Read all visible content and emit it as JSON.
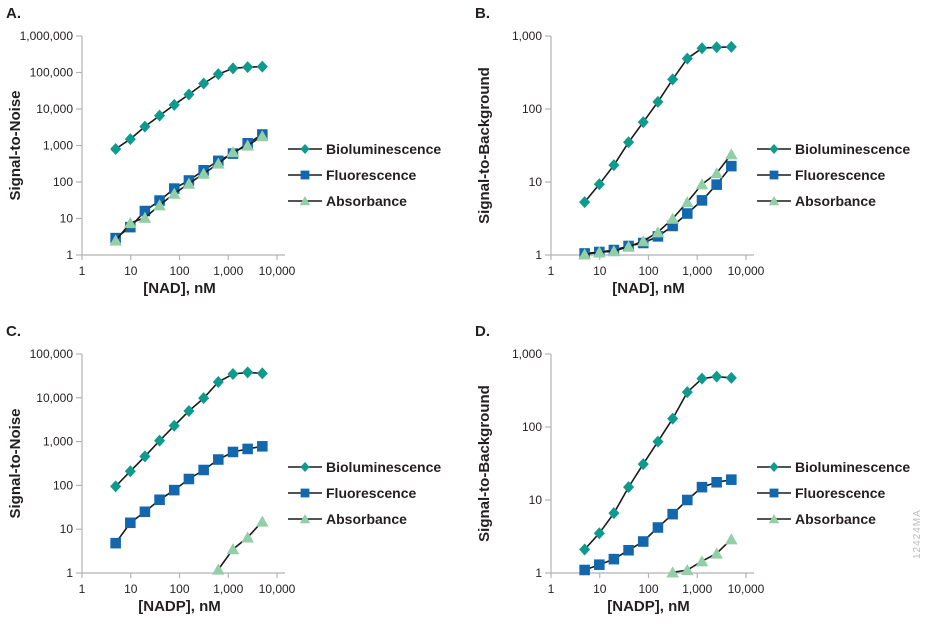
{
  "watermark": "12424MA",
  "colors": {
    "bioluminescence": "#0F9A8E",
    "fluorescence": "#1267AD",
    "absorbance": "#93CFA6",
    "line": "#1a1a1a",
    "axis": "#b1b3b5",
    "text": "#231f20",
    "watermark": "#b9bdbf"
  },
  "chart_data": [
    {
      "panel": "A.",
      "type": "line",
      "xlabel": "[NAD], nM",
      "ylabel": "Signal-to-Noise",
      "xlim": [
        1,
        10000
      ],
      "ylim": [
        1,
        1000000
      ],
      "x_ticks": [
        "1",
        "10",
        "100",
        "1,000",
        "10,000"
      ],
      "y_ticks": [
        "1",
        "10",
        "100",
        "1,000",
        "10,000",
        "100,000",
        "1,000,000"
      ],
      "x_scale": "log",
      "y_scale": "log",
      "grid": false,
      "legend_position": "right",
      "x": [
        4.9,
        9.8,
        19.5,
        39,
        78,
        156,
        313,
        625,
        1250,
        2500,
        5000
      ],
      "series": [
        {
          "name": "Bioluminescence",
          "marker": "diamond",
          "color": "#0F9A8E",
          "values": [
            800,
            1500,
            3300,
            6600,
            13000,
            25000,
            50000,
            90000,
            130000,
            140000,
            145000
          ]
        },
        {
          "name": "Fluorescence",
          "marker": "square",
          "color": "#1267AD",
          "values": [
            2.9,
            5.8,
            16,
            31,
            66,
            110,
            210,
            380,
            600,
            1150,
            2000
          ]
        },
        {
          "name": "Absorbance",
          "marker": "triangle",
          "color": "#93CFA6",
          "values": [
            2.5,
            7.5,
            10.5,
            23,
            48,
            90,
            170,
            320,
            660,
            1000,
            1800
          ]
        }
      ]
    },
    {
      "panel": "B.",
      "type": "line",
      "xlabel": "[NAD], nM",
      "ylabel": "Signal-to-Background",
      "xlim": [
        1,
        10000
      ],
      "ylim": [
        1,
        1000
      ],
      "x_ticks": [
        "1",
        "10",
        "100",
        "1,000",
        "10,000"
      ],
      "y_ticks": [
        "1",
        "10",
        "100",
        "1,000"
      ],
      "x_scale": "log",
      "y_scale": "log",
      "grid": false,
      "legend_position": "right",
      "x": [
        4.9,
        9.8,
        19.5,
        39,
        78,
        156,
        313,
        625,
        1250,
        2500,
        5000
      ],
      "series": [
        {
          "name": "Bioluminescence",
          "marker": "diamond",
          "color": "#0F9A8E",
          "values": [
            5.3,
            9.3,
            17,
            35,
            66,
            125,
            255,
            490,
            680,
            700,
            710
          ]
        },
        {
          "name": "Fluorescence",
          "marker": "square",
          "color": "#1267AD",
          "values": [
            1.05,
            1.1,
            1.17,
            1.33,
            1.46,
            1.8,
            2.5,
            3.7,
            5.6,
            9.2,
            16.5
          ]
        },
        {
          "name": "Absorbance",
          "marker": "triangle",
          "color": "#93CFA6",
          "values": [
            1.02,
            1.09,
            1.13,
            1.3,
            1.55,
            2.05,
            3.15,
            5.3,
            9.3,
            13.2,
            24
          ]
        }
      ]
    },
    {
      "panel": "C.",
      "type": "line",
      "xlabel": "[NADP], nM",
      "ylabel": "Signal-to-Noise",
      "xlim": [
        1,
        10000
      ],
      "ylim": [
        1,
        100000
      ],
      "x_ticks": [
        "1",
        "10",
        "100",
        "1,000",
        "10,000"
      ],
      "y_ticks": [
        "1",
        "10",
        "100",
        "1,000",
        "10,000",
        "100,000"
      ],
      "x_scale": "log",
      "y_scale": "log",
      "grid": false,
      "legend_position": "right",
      "x": [
        4.9,
        9.8,
        19.5,
        39,
        78,
        156,
        313,
        625,
        1250,
        2500,
        5000
      ],
      "series": [
        {
          "name": "Bioluminescence",
          "marker": "diamond",
          "color": "#0F9A8E",
          "values": [
            95,
            210,
            460,
            1050,
            2300,
            5000,
            9800,
            23000,
            35000,
            38000,
            36000
          ]
        },
        {
          "name": "Fluorescence",
          "marker": "square",
          "color": "#1267AD",
          "values": [
            4.8,
            14,
            25,
            47,
            78,
            140,
            225,
            390,
            580,
            680,
            780
          ]
        },
        {
          "name": "Absorbance",
          "marker": "triangle",
          "color": "#93CFA6",
          "x": [
            625,
            1250,
            2500,
            5000
          ],
          "values": [
            1.2,
            3.5,
            6.5,
            15
          ]
        }
      ]
    },
    {
      "panel": "D.",
      "type": "line",
      "xlabel": "[NADP], nM",
      "ylabel": "Signal-to-Background",
      "xlim": [
        1,
        10000
      ],
      "ylim": [
        1,
        1000
      ],
      "x_ticks": [
        "1",
        "10",
        "100",
        "1,000",
        "10,000"
      ],
      "y_ticks": [
        "1",
        "10",
        "100",
        "1,000"
      ],
      "x_scale": "log",
      "y_scale": "log",
      "grid": false,
      "legend_position": "right",
      "x": [
        4.9,
        9.8,
        19.5,
        39,
        78,
        156,
        313,
        625,
        1250,
        2500,
        5000
      ],
      "series": [
        {
          "name": "Bioluminescence",
          "marker": "diamond",
          "color": "#0F9A8E",
          "values": [
            2.1,
            3.5,
            6.6,
            15,
            31,
            63,
            130,
            300,
            460,
            490,
            470
          ]
        },
        {
          "name": "Fluorescence",
          "marker": "square",
          "color": "#1267AD",
          "values": [
            1.1,
            1.3,
            1.55,
            2.05,
            2.7,
            4.2,
            6.4,
            10,
            15,
            17.5,
            19
          ]
        },
        {
          "name": "Absorbance",
          "marker": "triangle",
          "color": "#93CFA6",
          "x": [
            313,
            625,
            1250,
            2500,
            5000
          ],
          "values": [
            1.02,
            1.1,
            1.45,
            1.85,
            2.9
          ]
        }
      ]
    }
  ]
}
